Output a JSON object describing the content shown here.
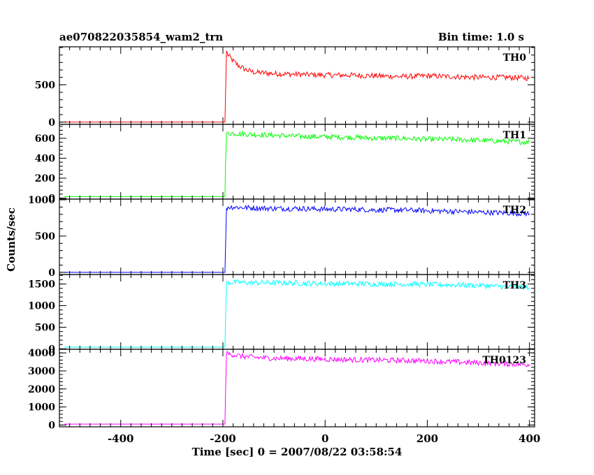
{
  "header": {
    "title_left": "ae070822035854_wam2_trn",
    "title_right": "Bin time: 1.0 s"
  },
  "axes": {
    "xlabel": "Time [sec] 0 = 2007/08/22 03:58:54",
    "ylabel": "Counts/sec"
  },
  "chart_data": {
    "type": "line",
    "x_range": [
      -520,
      410
    ],
    "x_ticks": [
      "-400",
      "-200",
      "0",
      "200",
      "400"
    ],
    "x_tick_values": [
      -400,
      -200,
      0,
      200,
      400
    ],
    "panels": [
      {
        "name": "TH0",
        "color": "#ff0000",
        "ylim": [
          -30,
          1010
        ],
        "y_ticks": [
          "0",
          "500"
        ],
        "y_tick_values": [
          0,
          500
        ],
        "x": [
          -510,
          -196,
          -195,
          -193,
          -190,
          -185,
          -180,
          -170,
          -160,
          -150,
          -140,
          -120,
          -100,
          -50,
          0,
          50,
          100,
          150,
          200,
          250,
          300,
          350,
          400
        ],
        "y": [
          0,
          0,
          300,
          950,
          900,
          860,
          820,
          760,
          720,
          690,
          670,
          660,
          650,
          640,
          630,
          630,
          620,
          610,
          620,
          610,
          600,
          600,
          590
        ]
      },
      {
        "name": "TH1",
        "color": "#00ff00",
        "ylim": [
          -10,
          740
        ],
        "y_ticks": [
          "0",
          "200",
          "400",
          "600"
        ],
        "y_tick_values": [
          0,
          200,
          400,
          600
        ],
        "x": [
          -510,
          -196,
          -195,
          -193,
          -190,
          -180,
          -150,
          -100,
          -50,
          0,
          50,
          100,
          150,
          200,
          250,
          300,
          350,
          400
        ],
        "y": [
          15,
          15,
          300,
          640,
          650,
          650,
          640,
          630,
          620,
          615,
          610,
          600,
          600,
          590,
          590,
          580,
          570,
          560
        ]
      },
      {
        "name": "TH2",
        "color": "#0000ff",
        "ylim": [
          -30,
          1010
        ],
        "y_ticks": [
          "0",
          "500",
          "1000"
        ],
        "y_tick_values": [
          0,
          500,
          1000
        ],
        "x": [
          -510,
          -196,
          -195,
          -193,
          -190,
          -180,
          -150,
          -100,
          -50,
          0,
          50,
          100,
          150,
          200,
          250,
          300,
          350,
          400
        ],
        "y": [
          0,
          0,
          300,
          880,
          900,
          900,
          890,
          880,
          880,
          870,
          870,
          860,
          860,
          850,
          840,
          830,
          820,
          810
        ]
      },
      {
        "name": "TH3",
        "color": "#00ffff",
        "ylim": [
          -10,
          1720
        ],
        "y_ticks": [
          "0",
          "500",
          "1000",
          "1500"
        ],
        "y_tick_values": [
          0,
          500,
          1000,
          1500
        ],
        "x": [
          -510,
          -196,
          -195,
          -193,
          -190,
          -180,
          -150,
          -100,
          -50,
          0,
          50,
          100,
          150,
          200,
          250,
          300,
          350,
          400
        ],
        "y": [
          40,
          40,
          600,
          1520,
          1540,
          1540,
          1530,
          1530,
          1520,
          1510,
          1510,
          1500,
          1500,
          1490,
          1480,
          1470,
          1440,
          1420
        ]
      },
      {
        "name": "TH0123",
        "color": "#ff00ff",
        "ylim": [
          -100,
          4200
        ],
        "y_ticks": [
          "0",
          "1000",
          "2000",
          "3000",
          "4000"
        ],
        "y_tick_values": [
          0,
          1000,
          2000,
          3000,
          4000
        ],
        "x": [
          -510,
          -196,
          -195,
          -193,
          -190,
          -180,
          -160,
          -140,
          -100,
          -50,
          0,
          50,
          100,
          150,
          200,
          250,
          300,
          350,
          400
        ],
        "y": [
          50,
          50,
          1500,
          3950,
          3950,
          3900,
          3800,
          3750,
          3700,
          3680,
          3650,
          3620,
          3600,
          3580,
          3550,
          3500,
          3450,
          3400,
          3350
        ]
      }
    ],
    "grid": false,
    "legend": "none"
  }
}
